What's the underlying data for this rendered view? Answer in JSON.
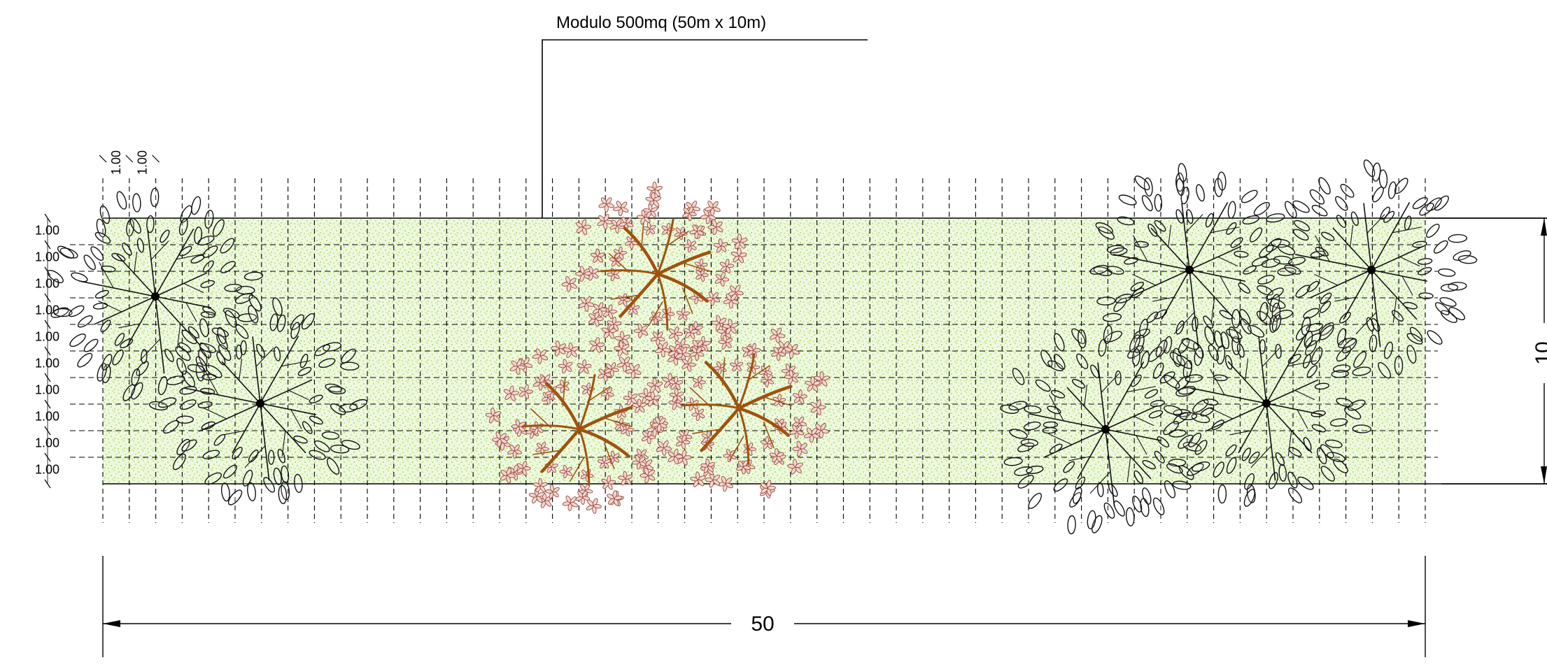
{
  "title_callout": "Modulo 500mq (50m x 10m)",
  "grid_spacing_label": "1.00",
  "row_labels": [
    "1.00",
    "1.00",
    "1.00",
    "1.00",
    "1.00",
    "1.00",
    "1.00",
    "1.00",
    "1.00",
    "1.00"
  ],
  "column_labels": [
    "1.00",
    "1.00"
  ],
  "length_dimension": "50",
  "width_dimension": "10",
  "colors": {
    "lawn_fill": "#eef8df",
    "lawn_dots": "#8fd63a",
    "canopy_dark": "#111111",
    "canopy_brown": "#9b4a3c",
    "trunk_brown": "#a0520d"
  },
  "trees": [
    {
      "kind": "dark",
      "icon": "tree-canopy-icon"
    },
    {
      "kind": "dark",
      "icon": "tree-canopy-icon"
    },
    {
      "kind": "brown",
      "icon": "flowering-tree-icon"
    },
    {
      "kind": "brown",
      "icon": "flowering-tree-icon"
    },
    {
      "kind": "brown",
      "icon": "flowering-tree-icon"
    },
    {
      "kind": "dark",
      "icon": "tree-canopy-icon"
    },
    {
      "kind": "dark",
      "icon": "tree-canopy-icon"
    },
    {
      "kind": "dark",
      "icon": "tree-canopy-icon"
    },
    {
      "kind": "dark",
      "icon": "tree-canopy-icon"
    }
  ]
}
